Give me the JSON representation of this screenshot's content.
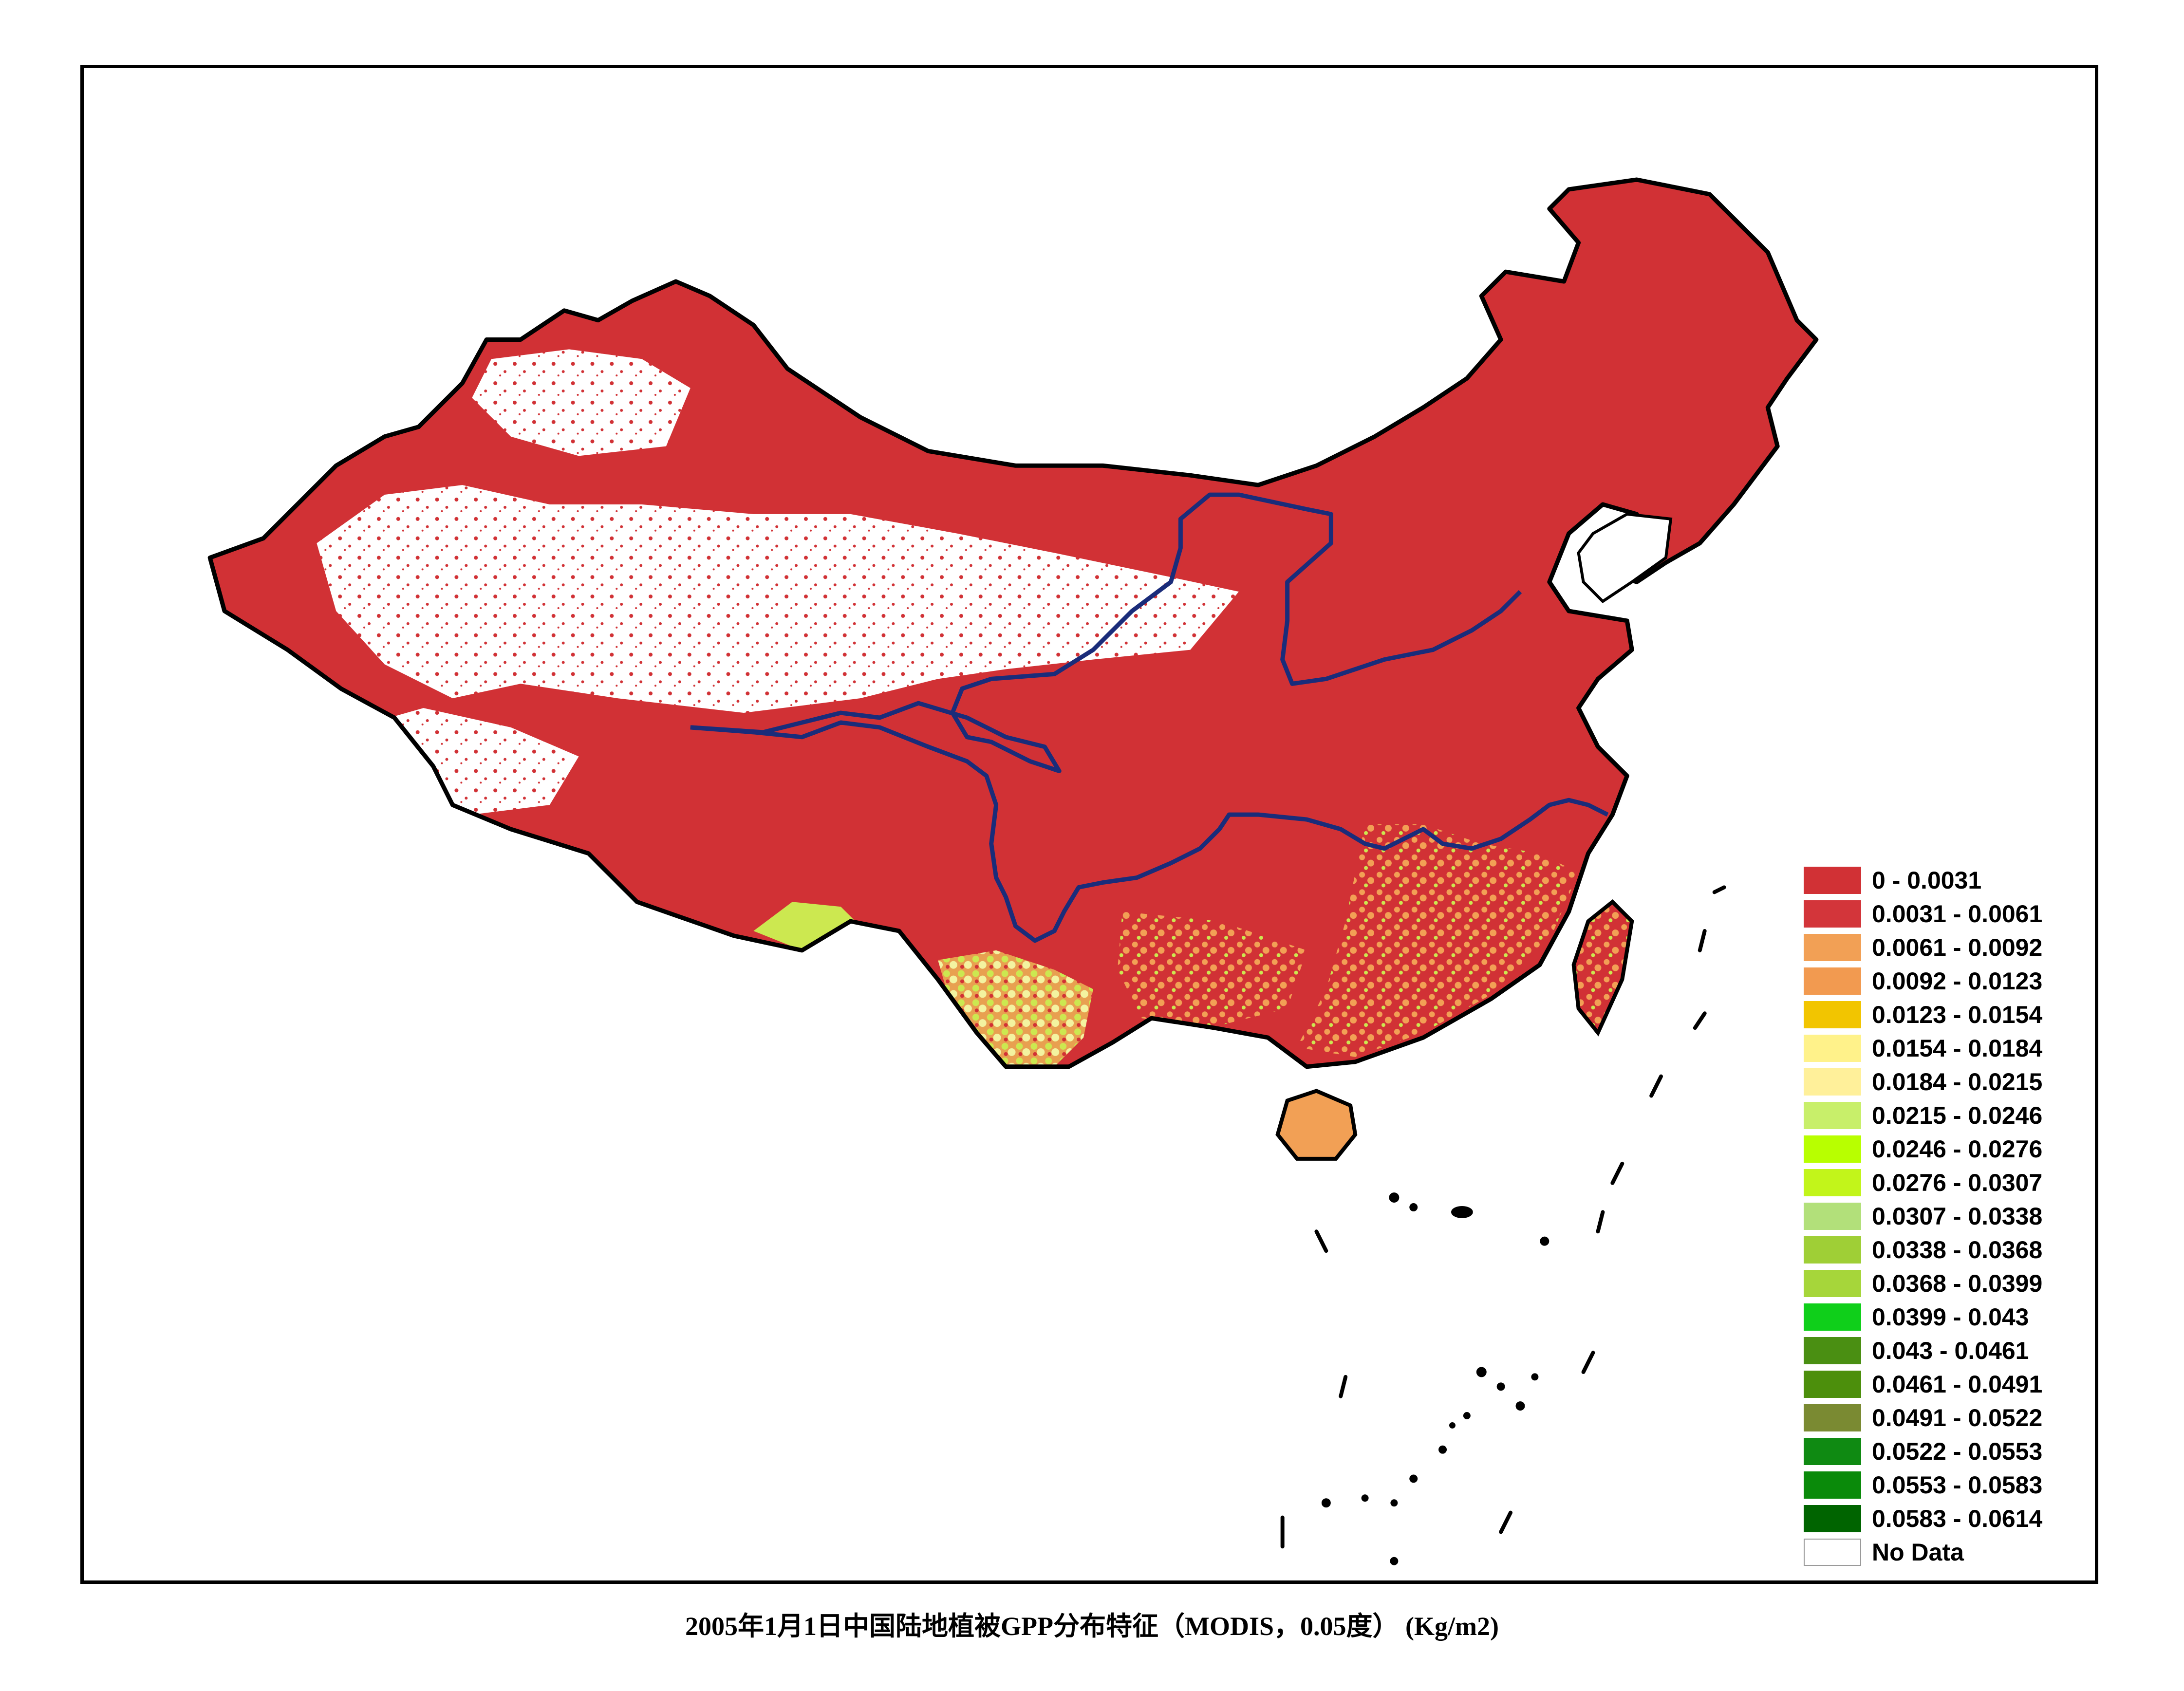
{
  "map": {
    "colors": {
      "low_gpp": "#d13135",
      "orange": "#f2a055",
      "yellow_green": "#cce850",
      "border": "#000000",
      "river": "#1a2c7a",
      "no_data": "#ffffff"
    },
    "rivers": [
      "yellow-river",
      "yangtze-river"
    ]
  },
  "legend": {
    "items": [
      {
        "label": "0 - 0.0031",
        "color": "#d13135"
      },
      {
        "label": "0.0031 - 0.0061",
        "color": "#d3353a"
      },
      {
        "label": "0.0061 - 0.0092",
        "color": "#f2a055"
      },
      {
        "label": "0.0092 - 0.0123",
        "color": "#f29a50"
      },
      {
        "label": "0.0123 - 0.0154",
        "color": "#f2c500"
      },
      {
        "label": "0.0154 - 0.0184",
        "color": "#fff28a"
      },
      {
        "label": "0.0184 - 0.0215",
        "color": "#fff09a"
      },
      {
        "label": "0.0215 - 0.0246",
        "color": "#c8ef6a"
      },
      {
        "label": "0.0246 - 0.0276",
        "color": "#b8ff00"
      },
      {
        "label": "0.0276 - 0.0307",
        "color": "#c2f51a"
      },
      {
        "label": "0.0307 - 0.0338",
        "color": "#b2e07a"
      },
      {
        "label": "0.0338 - 0.0368",
        "color": "#9fcf36"
      },
      {
        "label": "0.0368 - 0.0399",
        "color": "#a6d63a"
      },
      {
        "label": "0.0399 - 0.043",
        "color": "#0fcf1a"
      },
      {
        "label": "0.043 - 0.0461",
        "color": "#4a8f12"
      },
      {
        "label": "0.0461 - 0.0491",
        "color": "#4c8f0c"
      },
      {
        "label": "0.0491 - 0.0522",
        "color": "#7a8a32"
      },
      {
        "label": "0.0522 - 0.0553",
        "color": "#0f8a12"
      },
      {
        "label": "0.0553 - 0.0583",
        "color": "#0a8a0a"
      },
      {
        "label": "0.0583 - 0.0614",
        "color": "#006400"
      },
      {
        "label": "No Data",
        "color": "#ffffff"
      }
    ]
  },
  "caption": "2005年1月1日中国陆地植被GPP分布特征（MODIS，0.05度） (Kg/m2)"
}
